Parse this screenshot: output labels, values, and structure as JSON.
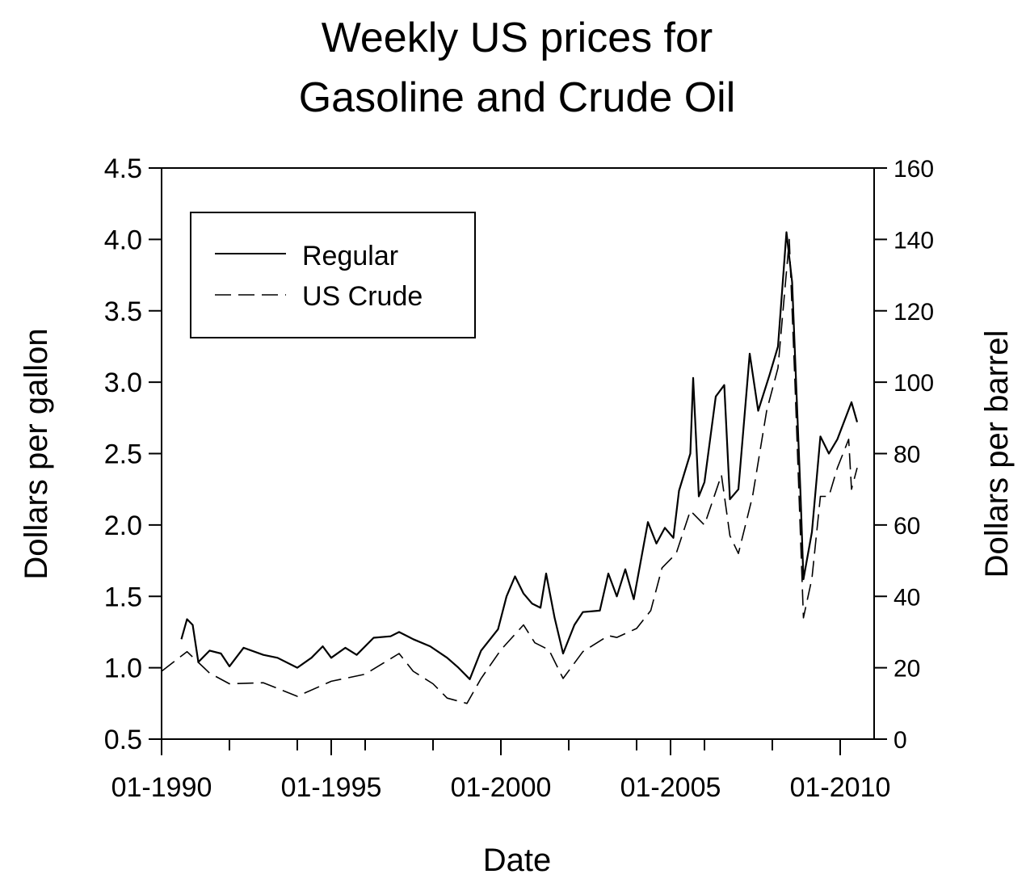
{
  "chart_data": {
    "type": "line",
    "title": [
      "Weekly US prices for",
      "Gasoline and Crude Oil"
    ],
    "xlabel": "Date",
    "ylabel_left": "Dollars per gallon",
    "ylabel_right": "Dollars per barrel",
    "x_ticks": [
      "01-1990",
      "01-1995",
      "01-2000",
      "01-2005",
      "01-2010"
    ],
    "ylim_left": [
      0.5,
      4.5
    ],
    "ylim_right": [
      0,
      160
    ],
    "y_ticks_left": [
      "0.5",
      "1.0",
      "1.5",
      "2.0",
      "2.5",
      "3.0",
      "3.5",
      "4.0",
      "4.5"
    ],
    "y_ticks_right": [
      "0",
      "20",
      "40",
      "60",
      "80",
      "100",
      "120",
      "140",
      "160"
    ],
    "grid": false,
    "legend_position": "top-left",
    "series": [
      {
        "name": "Regular",
        "axis": "left",
        "style": "solid",
        "points": [
          [
            "1990-08",
            1.2
          ],
          [
            "1990-10",
            1.34
          ],
          [
            "1990-12",
            1.3
          ],
          [
            "1991-02",
            1.04
          ],
          [
            "1991-06",
            1.12
          ],
          [
            "1991-10",
            1.1
          ],
          [
            "1992-01",
            1.01
          ],
          [
            "1992-06",
            1.14
          ],
          [
            "1993-01",
            1.09
          ],
          [
            "1993-06",
            1.07
          ],
          [
            "1994-01",
            1.0
          ],
          [
            "1994-06",
            1.07
          ],
          [
            "1994-10",
            1.15
          ],
          [
            "1995-01",
            1.07
          ],
          [
            "1995-06",
            1.14
          ],
          [
            "1995-10",
            1.09
          ],
          [
            "1996-04",
            1.21
          ],
          [
            "1996-10",
            1.22
          ],
          [
            "1997-01",
            1.25
          ],
          [
            "1997-06",
            1.2
          ],
          [
            "1997-12",
            1.15
          ],
          [
            "1998-06",
            1.07
          ],
          [
            "1998-10",
            1.0
          ],
          [
            "1999-02",
            0.92
          ],
          [
            "1999-06",
            1.12
          ],
          [
            "1999-12",
            1.27
          ],
          [
            "2000-03",
            1.5
          ],
          [
            "2000-06",
            1.64
          ],
          [
            "2000-09",
            1.52
          ],
          [
            "2000-12",
            1.45
          ],
          [
            "2001-03",
            1.42
          ],
          [
            "2001-05",
            1.66
          ],
          [
            "2001-08",
            1.35
          ],
          [
            "2001-11",
            1.1
          ],
          [
            "2002-03",
            1.3
          ],
          [
            "2002-06",
            1.39
          ],
          [
            "2002-12",
            1.4
          ],
          [
            "2003-03",
            1.66
          ],
          [
            "2003-06",
            1.5
          ],
          [
            "2003-09",
            1.69
          ],
          [
            "2003-12",
            1.48
          ],
          [
            "2004-05",
            2.02
          ],
          [
            "2004-08",
            1.87
          ],
          [
            "2004-11",
            1.98
          ],
          [
            "2005-02",
            1.91
          ],
          [
            "2005-04",
            2.24
          ],
          [
            "2005-08",
            2.5
          ],
          [
            "2005-09",
            3.03
          ],
          [
            "2005-11",
            2.2
          ],
          [
            "2006-01",
            2.3
          ],
          [
            "2006-05",
            2.9
          ],
          [
            "2006-08",
            2.98
          ],
          [
            "2006-10",
            2.18
          ],
          [
            "2007-01",
            2.25
          ],
          [
            "2007-05",
            3.2
          ],
          [
            "2007-08",
            2.8
          ],
          [
            "2007-12",
            3.05
          ],
          [
            "2008-03",
            3.25
          ],
          [
            "2008-06",
            4.05
          ],
          [
            "2008-08",
            3.7
          ],
          [
            "2008-11",
            2.2
          ],
          [
            "2008-12",
            1.62
          ],
          [
            "2009-03",
            1.95
          ],
          [
            "2009-06",
            2.62
          ],
          [
            "2009-09",
            2.5
          ],
          [
            "2009-12",
            2.6
          ],
          [
            "2010-05",
            2.86
          ],
          [
            "2010-07",
            2.72
          ]
        ]
      },
      {
        "name": "US Crude",
        "axis": "right",
        "style": "dashed",
        "points": [
          [
            "1990-01",
            19.0
          ],
          [
            "1990-10",
            24.5
          ],
          [
            "1991-06",
            18.5
          ],
          [
            "1992-01",
            15.5
          ],
          [
            "1993-01",
            15.8
          ],
          [
            "1994-01",
            12.0
          ],
          [
            "1995-01",
            16.2
          ],
          [
            "1996-01",
            18.2
          ],
          [
            "1997-01",
            24.0
          ],
          [
            "1997-06",
            19.0
          ],
          [
            "1998-01",
            15.5
          ],
          [
            "1998-06",
            11.5
          ],
          [
            "1999-01",
            10.0
          ],
          [
            "1999-06",
            17.0
          ],
          [
            "2000-01",
            25.0
          ],
          [
            "2000-09",
            32.0
          ],
          [
            "2001-01",
            27.0
          ],
          [
            "2001-06",
            25.0
          ],
          [
            "2001-11",
            17.0
          ],
          [
            "2002-06",
            24.5
          ],
          [
            "2003-03",
            29.0
          ],
          [
            "2003-06",
            28.5
          ],
          [
            "2004-01",
            31.0
          ],
          [
            "2004-06",
            36.0
          ],
          [
            "2004-10",
            48.0
          ],
          [
            "2005-03",
            52.0
          ],
          [
            "2005-08",
            64.0
          ],
          [
            "2006-01",
            60.0
          ],
          [
            "2006-07",
            74.0
          ],
          [
            "2006-10",
            57.0
          ],
          [
            "2007-01",
            52.0
          ],
          [
            "2007-06",
            68.0
          ],
          [
            "2007-11",
            92.0
          ],
          [
            "2008-03",
            104.0
          ],
          [
            "2008-07",
            140.0
          ],
          [
            "2008-09",
            100.0
          ],
          [
            "2008-12",
            34.0
          ],
          [
            "2009-03",
            45.0
          ],
          [
            "2009-06",
            68.0
          ],
          [
            "2009-09",
            68.0
          ],
          [
            "2009-12",
            76.0
          ],
          [
            "2010-04",
            84.0
          ],
          [
            "2010-05",
            70.0
          ],
          [
            "2010-07",
            76.0
          ]
        ]
      }
    ]
  }
}
